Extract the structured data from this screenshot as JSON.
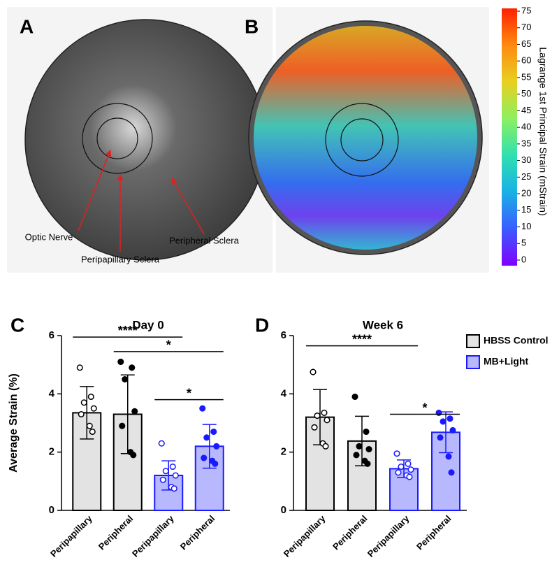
{
  "panel_labels": [
    "A",
    "B",
    "C",
    "D"
  ],
  "image_annotations": [
    "Optic Nerve",
    "Peripapillary Sclera",
    "Peripheral Sclera"
  ],
  "colorbar": {
    "label": "Lagrange 1st Principal Strain (mStrain)",
    "lim": [
      0,
      75
    ],
    "ticks": [
      0,
      5,
      10,
      15,
      20,
      25,
      30,
      35,
      40,
      45,
      50,
      55,
      60,
      65,
      70,
      75
    ],
    "colors": [
      "#8000ff",
      "#3a5cff",
      "#1ab0e6",
      "#2fe0b0",
      "#8cf060",
      "#e8d020",
      "#ff8a10",
      "#ff2000"
    ]
  },
  "chart_data": [
    {
      "type": "bar",
      "title": "Day 0",
      "ylabel": "Average Strain (%)",
      "categories": [
        "Peripapillary",
        "Peripheral",
        "Peripapillary",
        "Peripheral"
      ],
      "ylim": [
        0,
        6
      ],
      "yticks": [
        0,
        2,
        4,
        6
      ],
      "legend": false,
      "series": [
        {
          "color": "#e3e3e3",
          "edge": "#000000",
          "values": [
            3.35,
            3.3,
            null,
            null
          ],
          "errors": [
            0.9,
            1.35,
            null,
            null
          ]
        },
        {
          "color": "#b8b8ff",
          "edge": "#1a1aff",
          "values": [
            null,
            null,
            1.2,
            2.2
          ],
          "errors": [
            null,
            null,
            0.5,
            0.75
          ]
        }
      ],
      "points": [
        [
          4.9,
          3.9,
          3.7,
          3.5,
          3.3,
          2.9,
          2.7
        ],
        [
          5.1,
          4.9,
          4.5,
          3.4,
          2.9,
          2.0,
          1.9
        ],
        [
          2.3,
          1.5,
          1.35,
          1.2,
          1.05,
          0.8,
          0.75
        ],
        [
          3.5,
          2.7,
          2.5,
          2.2,
          1.8,
          1.7,
          1.6
        ]
      ],
      "point_markers": [
        "open",
        "filled",
        "open",
        "filled"
      ],
      "significance": [
        {
          "from": 0,
          "to": 2,
          "y": 5.95,
          "label": "****"
        },
        {
          "from": 1,
          "to": 3,
          "y": 5.45,
          "label": "*"
        },
        {
          "from": 2,
          "to": 3,
          "y": 3.8,
          "label": "*"
        }
      ]
    },
    {
      "type": "bar",
      "title": "Week 6",
      "categories": [
        "Peripapillary",
        "Peripheral",
        "Peripapillary",
        "Peripheral"
      ],
      "ylim": [
        0,
        6
      ],
      "yticks": [
        0,
        2,
        4,
        6
      ],
      "legend": true,
      "series": [
        {
          "name": "HBSS Control",
          "color": "#e3e3e3",
          "edge": "#000000",
          "values": [
            3.2,
            2.38,
            null,
            null
          ],
          "errors": [
            0.95,
            0.85,
            null,
            null
          ]
        },
        {
          "name": "MB+Light",
          "color": "#b8b8ff",
          "edge": "#1a1aff",
          "values": [
            null,
            null,
            1.43,
            2.68
          ],
          "errors": [
            null,
            null,
            0.3,
            0.7
          ]
        }
      ],
      "points": [
        [
          4.75,
          3.35,
          3.25,
          3.1,
          2.85,
          2.3,
          2.2
        ],
        [
          3.9,
          2.7,
          2.2,
          2.1,
          1.9,
          1.7,
          1.6
        ],
        [
          1.95,
          1.6,
          1.5,
          1.4,
          1.3,
          1.2,
          1.15
        ],
        [
          3.35,
          3.15,
          3.05,
          2.75,
          2.5,
          1.85,
          1.3
        ]
      ],
      "point_markers": [
        "open",
        "filled",
        "open",
        "filled"
      ],
      "significance": [
        {
          "from": 0,
          "to": 2,
          "y": 5.65,
          "label": "****"
        },
        {
          "from": 2,
          "to": 3,
          "y": 3.3,
          "label": "*"
        }
      ]
    }
  ]
}
